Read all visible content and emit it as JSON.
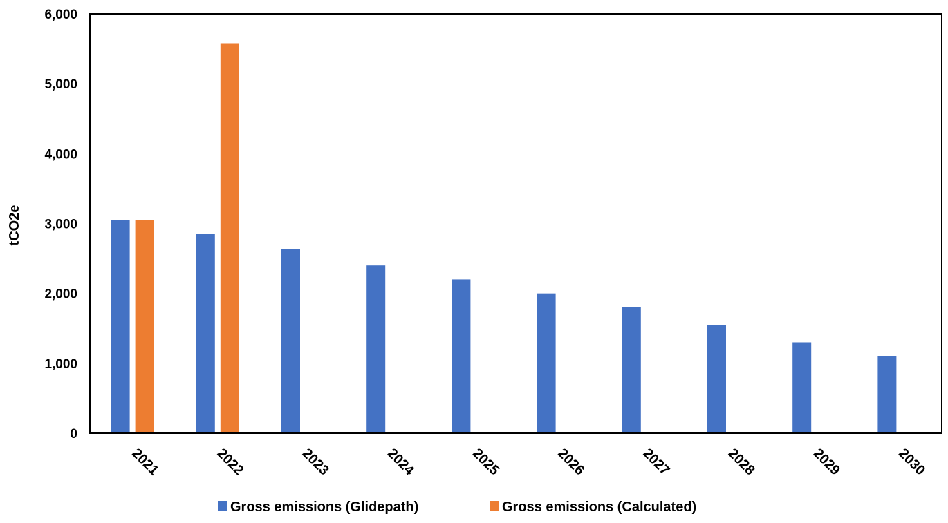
{
  "chart_data": {
    "type": "bar",
    "title": "",
    "xlabel": "",
    "ylabel": "tCO2e",
    "categories": [
      "2021",
      "2022",
      "2023",
      "2024",
      "2025",
      "2026",
      "2027",
      "2028",
      "2029",
      "2030"
    ],
    "series": [
      {
        "name": "Gross emissions (Glidepath)",
        "color": "#4472C4",
        "values": [
          3050,
          2850,
          2630,
          2400,
          2200,
          2000,
          1800,
          1550,
          1300,
          1100
        ]
      },
      {
        "name": "Gross emissions (Calculated)",
        "color": "#ED7D31",
        "values": [
          3050,
          5580,
          null,
          null,
          null,
          null,
          null,
          null,
          null,
          null
        ]
      }
    ],
    "ylim": [
      0,
      6000
    ],
    "yticks": [
      0,
      1000,
      2000,
      3000,
      4000,
      5000,
      6000
    ],
    "ytick_labels": [
      "0",
      "1,000",
      "2,000",
      "3,000",
      "4,000",
      "5,000",
      "6,000"
    ],
    "grid": false,
    "legend_position": "bottom"
  }
}
